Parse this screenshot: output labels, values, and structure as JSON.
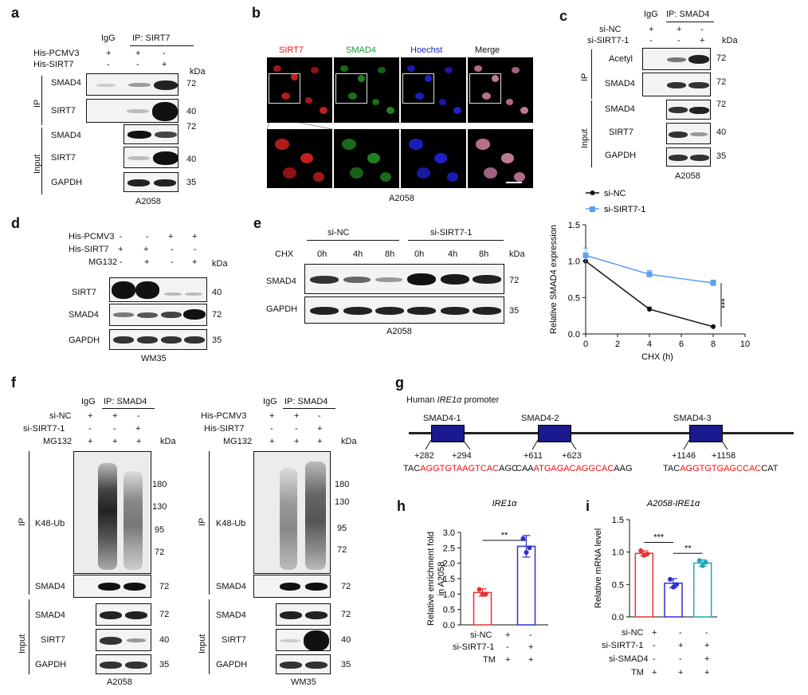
{
  "panel_letters": {
    "a": "a",
    "b": "b",
    "c": "c",
    "d": "d",
    "e": "e",
    "f": "f",
    "g": "g",
    "h": "h",
    "i": "i"
  },
  "common": {
    "kda": "kDa",
    "ip": "IP",
    "input": "Input",
    "plus": "+",
    "minus": "-"
  },
  "a": {
    "igg": "IgG",
    "ip_sirt7": "IP: SIRT7",
    "rows": [
      {
        "label": "His-PCMV3",
        "signs": [
          "+",
          "+",
          "-"
        ]
      },
      {
        "label": "His-SIRT7",
        "signs": [
          "-",
          "-",
          "+"
        ]
      }
    ],
    "blots": [
      "SMAD4",
      "SIRT7",
      "SMAD4",
      "SIRT7",
      "GAPDH"
    ],
    "mw": [
      "72",
      "40",
      "72",
      "40",
      "35"
    ],
    "cell_line": "A2058"
  },
  "b": {
    "channels": [
      "SIRT7",
      "SMAD4",
      "Hoechst",
      "Merge"
    ],
    "cell_line": "A2058"
  },
  "c": {
    "igg": "IgG",
    "ip_smad4": "IP: SMAD4",
    "rows": [
      {
        "label": "si-NC",
        "signs": [
          "+",
          "+",
          "-"
        ]
      },
      {
        "label": "si-SIRT7-1",
        "signs": [
          "-",
          "-",
          "+"
        ]
      }
    ],
    "blots": [
      "Acetyl",
      "SMAD4",
      "SMAD4",
      "SIRT7",
      "GAPDH"
    ],
    "mw": [
      "72",
      "72",
      "72",
      "40",
      "35"
    ],
    "cell_line": "A2058"
  },
  "d": {
    "rows": [
      {
        "label": "His-PCMV3",
        "signs": [
          "-",
          "-",
          "+",
          "+"
        ]
      },
      {
        "label": "His-SIRT7",
        "signs": [
          "+",
          "+",
          "-",
          "-"
        ]
      },
      {
        "label": "MG132",
        "signs": [
          "-",
          "+",
          "-",
          "+"
        ]
      }
    ],
    "blots": [
      "SIRT7",
      "SMAD4",
      "GAPDH"
    ],
    "mw": [
      "40",
      "72",
      "35"
    ],
    "cell_line": "WM35"
  },
  "e": {
    "groups": [
      "si-NC",
      "si-SIRT7-1"
    ],
    "chx": "CHX",
    "times": [
      "0h",
      "4h",
      "8h",
      "0h",
      "4h",
      "8h"
    ],
    "blots": [
      "SMAD4",
      "GAPDH"
    ],
    "mw": [
      "72",
      "35"
    ],
    "cell_line": "A2058"
  },
  "f": {
    "left": {
      "igg": "IgG",
      "ip_smad4": "IP: SMAD4",
      "rows": [
        {
          "label": "si-NC",
          "signs": [
            "+",
            "+",
            "-"
          ]
        },
        {
          "label": "si-SIRT7-1",
          "signs": [
            "-",
            "-",
            "+"
          ]
        },
        {
          "label": "MG132",
          "signs": [
            "+",
            "+",
            "+"
          ]
        }
      ],
      "cell_line": "A2058"
    },
    "right": {
      "igg": "IgG",
      "ip_smad4": "IP: SMAD4",
      "rows": [
        {
          "label": "His-PCMV3",
          "signs": [
            "+",
            "+",
            "-"
          ]
        },
        {
          "label": "His-SIRT7",
          "signs": [
            "-",
            "-",
            "+"
          ]
        },
        {
          "label": "MG132",
          "signs": [
            "+",
            "+",
            "+"
          ]
        }
      ],
      "cell_line": "WM35"
    },
    "blots": [
      "K48-Ub",
      "SMAD4",
      "SMAD4",
      "SIRT7",
      "GAPDH"
    ],
    "ub_mw": [
      "180",
      "130",
      "95",
      "72"
    ],
    "mw": [
      "72",
      "72",
      "40",
      "35"
    ]
  },
  "g": {
    "title_prefix": "Human ",
    "gene": "IRE1α",
    "title_suffix": " promoter",
    "sites": [
      {
        "name": "SMAD4-1",
        "start": "+282",
        "end": "+294",
        "seq_pre": "TAC",
        "seq_core": "AGGTGTAAGTCAC",
        "seq_post": "AGC"
      },
      {
        "name": "SMAD4-2",
        "start": "+611",
        "end": "+623",
        "seq_pre": "CAA",
        "seq_core": "ATGAGACAGGCAC",
        "seq_post": "AAG"
      },
      {
        "name": "SMAD4-3",
        "start": "+1146",
        "end": "+1158",
        "seq_pre": "TAC",
        "seq_core": "AGGTGTGAGCCAC",
        "seq_post": "CAT"
      }
    ]
  },
  "h_labels": {
    "row_labels": [
      "si-NC",
      "si-SIRT7-1",
      "TM"
    ],
    "signs": [
      [
        "+",
        "-"
      ],
      [
        "-",
        "+"
      ],
      [
        "+",
        "+"
      ]
    ]
  },
  "i_labels": {
    "row_labels": [
      "si-NC",
      "si-SIRT7-1",
      "si-SMAD4",
      "TM"
    ],
    "signs": [
      [
        "+",
        "-",
        "-"
      ],
      [
        "-",
        "+",
        "+"
      ],
      [
        "-",
        "-",
        "+"
      ],
      [
        "+",
        "+",
        "+"
      ]
    ]
  },
  "chart_data": [
    {
      "id": "e-line",
      "type": "line",
      "title": "",
      "xlabel": "CHX (h)",
      "ylabel": "Relative SMAD4 expression",
      "xlim": [
        0,
        10
      ],
      "ylim": [
        0,
        1.5
      ],
      "xticks": [
        "0",
        "2",
        "4",
        "6",
        "8",
        "10"
      ],
      "yticks": [
        "0.0",
        "0.5",
        "1.0",
        "1.5"
      ],
      "x": [
        0,
        4,
        8
      ],
      "series": [
        {
          "name": "si-NC",
          "color": "#111111",
          "values": [
            1.0,
            0.34,
            0.1
          ],
          "errors": [
            0.01,
            0.03,
            0.01
          ]
        },
        {
          "name": "si-SIRT7-1",
          "color": "#5aa0f0",
          "values": [
            1.08,
            0.82,
            0.7
          ],
          "errors": [
            0.1,
            0.05,
            0.04
          ]
        }
      ],
      "significance": "***",
      "legend": "top"
    },
    {
      "id": "h-bar",
      "type": "bar",
      "title": "IRE1α",
      "ylabel": "Relative enrichment fold in A2058",
      "ylim": [
        0,
        3.0
      ],
      "yticks": [
        "0.0",
        "0.5",
        "1.0",
        "1.5",
        "2.0",
        "2.5",
        "3.0"
      ],
      "categories": [
        "si-NC",
        "si-SIRT7-1"
      ],
      "values": [
        1.05,
        2.55
      ],
      "errors": [
        0.12,
        0.35
      ],
      "points": [
        [
          1.15,
          1.0,
          1.0
        ],
        [
          2.8,
          2.35,
          2.5
        ]
      ],
      "colors": [
        "#e83030",
        "#3030d0"
      ],
      "significance": "**"
    },
    {
      "id": "i-bar",
      "type": "bar",
      "title": "A2058-IRE1α",
      "ylabel": "Relative mRNA level",
      "ylim": [
        0,
        1.5
      ],
      "yticks": [
        "0.0",
        "0.5",
        "1.0",
        "1.5"
      ],
      "categories": [
        "si-NC",
        "si-SIRT7-1",
        "si-SIRT7-1 + si-SMAD4"
      ],
      "values": [
        0.98,
        0.52,
        0.83
      ],
      "errors": [
        0.04,
        0.07,
        0.05
      ],
      "points": [
        [
          1.02,
          0.95,
          0.97
        ],
        [
          0.58,
          0.46,
          0.5
        ],
        [
          0.87,
          0.79,
          0.84
        ]
      ],
      "colors": [
        "#e83030",
        "#3030d0",
        "#22a8b8"
      ],
      "significance": [
        "***",
        "**"
      ]
    }
  ]
}
